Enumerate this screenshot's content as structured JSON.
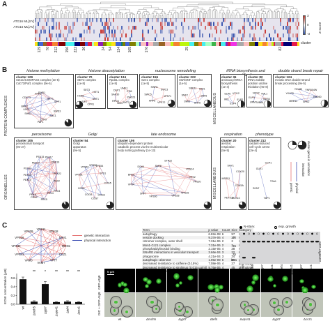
{
  "panels": {
    "a": "A",
    "b": "B",
    "c": "C"
  },
  "panel_a": {
    "row_labels": [
      "ATG16 ML[SY]",
      "ATG16 ML[AV]"
    ],
    "z_label": "Z-score",
    "z_ticks": [
      "3",
      "0",
      "-3"
    ],
    "cluster_label": "cluster",
    "cluster_ticks": [
      "129",
      "70",
      "212",
      "156",
      "222",
      "36",
      "24",
      "54",
      "134",
      "105",
      "176",
      "25",
      "82"
    ]
  },
  "panel_b": {
    "section_labels": {
      "protein_complexes": "PROTEIN COMPLEXES",
      "organelles": "ORGANELLES",
      "miscellaneous_top": "MISCELLANEOUS",
      "miscellaneous_bottom": "MISCELLANEOUS"
    },
    "top_row": [
      {
        "category": "histone methylation",
        "clusters": [
          {
            "title": "cluster 129",
            "sub": "Set1C/COMPASS complex (3e-5)\nCdc73/Paf1 complex (9e-5)",
            "genes": [
              "SWD3",
              "SDC1",
              "CTR9",
              "PAF1",
              "SHG1",
              "LEO1",
              "BRE2",
              "CDC73",
              "RTF1",
              "SWD1",
              "SET1",
              "SPP1"
            ]
          }
        ]
      },
      {
        "category": "histone deacetylation",
        "clusters": [
          {
            "title": "cluster 70",
            "sub": "SET3 complex\n(1e-8)",
            "genes": [
              "SNT1",
              "CPR1",
              "SIF2",
              "HOS2",
              "SET3",
              "HST1"
            ]
          },
          {
            "title": "cluster 134",
            "sub": "Rpd3L complex\n(1e-8)",
            "genes": [
              "PHO23",
              "RXT2",
              "SIN3",
              "RPD3",
              "SAP30",
              "DEP1",
              "UME1",
              "CTI6"
            ]
          }
        ]
      },
      {
        "category": "nucleosome remodeling",
        "clusters": [
          {
            "title": "cluster 156",
            "sub": "Swr1 complex\n(1e-5)",
            "genes": [
              "VPS71",
              "VPS72",
              "ARP6",
              "SWC5",
              "SWR1",
              "SWC3"
            ]
          },
          {
            "title": "cluster 222",
            "sub": "SWI/SNF complex\n(1e-5)",
            "genes": [
              "SNF6",
              "SNF5",
              "SWI3",
              "SNF2",
              "SNF11",
              "SWI1"
            ]
          }
        ]
      },
      {
        "category": "tRNA biosynthesis and modification",
        "clusters": [
          {
            "title": "cluster 36",
            "sub": "aminoacyl-tRNA\nbiosynthesis\n(1e-4)",
            "genes": [
              "ELP2",
              "ELP4",
              "IKI3",
              "ELP6",
              "KTI12"
            ]
          },
          {
            "title": "cluster 82",
            "sub": "tRNA wobble\nposition uridine\nthiolation (9e-8)",
            "genes": [
              "NCS6",
              "UBA4",
              "URM1",
              "ELP3",
              "NCS2",
              "YML1"
            ]
          }
        ]
      },
      {
        "category": "double strand break repair",
        "clusters": [
          {
            "title": "cluster 124",
            "sub": "meiotic DNA double-strand\nbreak processing (9e-5)",
            "genes": [
              "RAD50",
              "XRS2",
              "MRE11",
              "YKU70",
              "YKU80",
              "YNR004W"
            ]
          }
        ]
      }
    ],
    "bottom_row": [
      {
        "category": "peroxisome",
        "clusters": [
          {
            "title": "cluster 105",
            "sub": "peroxisomal transport\n(9e-27)",
            "genes": [
              "PEX2",
              "PEX3",
              "PEX4",
              "PEX5",
              "PEX6",
              "PEX8",
              "PEX10",
              "PEX12",
              "PEX13",
              "PEX14",
              "PEX15",
              "PEX17",
              "PEX19",
              "PEX22"
            ]
          }
        ]
      },
      {
        "category": "Golgi",
        "clusters": [
          {
            "title": "cluster 54",
            "sub": "Golgi\napparatus\n(9e-5)",
            "genes": [
              "COG5",
              "COG6",
              "COG7",
              "COG8",
              "GOS1",
              "VPS51",
              "VPS52",
              "VPS53",
              "VPS54",
              "SYS1"
            ]
          }
        ]
      },
      {
        "category": "late endosome",
        "clusters": [
          {
            "title": "cluster 106",
            "sub": "ubiquitin-dependent protein\ncatabolic process via the multivesicular\nbody sorting pathway (1e-13)",
            "genes": [
              "VPS20",
              "VPS25",
              "VPS28",
              "VPS36",
              "SNF7",
              "VPS4",
              "BRO1",
              "DOA4",
              "SNF8",
              "STP22",
              "VPS24",
              "VPS2"
            ]
          }
        ]
      },
      {
        "category": "respiration",
        "clusters": [
          {
            "title": "cluster 20",
            "sub": "aerobic\nrespiration\n(5e-5)",
            "genes": [
              "COX5A",
              "COX10",
              "PET100",
              "MSS51",
              "SHY1",
              "COX20"
            ]
          }
        ]
      },
      {
        "category": "phenotype",
        "clusters": [
          {
            "title": "cluster 212",
            "sub": "oxidant-induced\ncell-cycle arrest\n(3e-4)",
            "genes": [
              "TSA1",
              "YAP1",
              "SKN7",
              "GLR1",
              "CCP1"
            ]
          }
        ]
      }
    ],
    "legend": {
      "genetic": "genetic",
      "physical": "physical",
      "caption": "interaction",
      "coverage": "cluster genes in annotation"
    }
  },
  "panel_c": {
    "network_genes": [
      "MON1",
      "CCZ1",
      "YPT7",
      "VAM7",
      "VAM3",
      "VPS41",
      "VPS33",
      "VPS16",
      "VPS39",
      "VPS11",
      "VPS18",
      "NYV1"
    ],
    "network_legend": {
      "genetic": "genetic interaction",
      "physical": "physical interaction"
    },
    "table": {
      "headers": [
        "Term",
        "p value",
        "Count",
        "Size",
        "Category"
      ],
      "rows": [
        [
          "autophagy",
          "6.82e-08",
          "6",
          "97",
          "GO:BP"
        ],
        [
          "vesicle docking",
          "9.37e-06",
          "4",
          "27",
          "GO:BP"
        ],
        [
          "retromer complex, outer shell",
          "7.31e-06",
          "2",
          "2",
          "GO:CC"
        ],
        [
          "Mon1-Ccz1 complex",
          "7.31e-06",
          "2",
          "2",
          "GO:CC"
        ],
        [
          "phosphatidylinositol binding",
          "2.15e-05",
          "4",
          "38",
          "GO:MF"
        ],
        [
          "SNARE interactions in vesicular transport",
          "3.66e-04",
          "3",
          "22",
          "KEGG"
        ],
        [
          "phagosome",
          "4.21e-04",
          "3",
          "24",
          "KEGG"
        ],
        [
          "autophagic: aberrant",
          "1.95e-09",
          "6",
          "29",
          "phenotype"
        ],
        [
          "decreased resistance to caffeine (0.15%)",
          "7.08e-06",
          "4",
          "27",
          "phenotype"
        ],
        [
          "decreased resistance to sirolimus (0.015 µg/ml)",
          "9.76e-06",
          "4",
          "45",
          "phenotype"
        ],
        [
          "vacuolar morphology: abnormal",
          "2.28e-08",
          "6",
          "69",
          "phenotype"
        ]
      ]
    },
    "western": {
      "legend": {
        "starv": "N-starv.",
        "exp": "exp. growth"
      },
      "bands": [
        "GFP-Atg8",
        "GFP"
      ],
      "markers": [
        "kDa",
        "40",
        "35",
        "25"
      ],
      "lanes": [
        "wt",
        "Δmch5",
        "Δypt7",
        "Δvps41",
        "Δtef4",
        "Δvps41",
        "Δypt7",
        "Δccz1"
      ]
    },
    "barchart_labels": [
      "wt",
      "Δmch5",
      "Δypt7",
      "Δvps41",
      "Δtef4",
      "Δccz1"
    ],
    "microscopy": {
      "scale_bar": "5 µm",
      "row_labels": [
        "GFP-Atg8",
        "DIC + GFP-Atg8"
      ],
      "strains": [
        "wt",
        "Δmch5",
        "Δypt7",
        "Δtef4",
        "Δvps41",
        "Δypt7",
        "Δccz1"
      ]
    }
  },
  "chart_data": {
    "type": "bar",
    "categories": [
      "wt",
      "Δmch5",
      "Δypt7",
      "Δvps41",
      "Δtef4",
      "Δccz1"
    ],
    "series": [
      {
        "values": [
          0.57,
          0.06,
          0.46,
          0.05,
          0.06,
          0.05
        ],
        "errors": [
          0.05,
          0.02,
          0.06,
          0.01,
          0.02,
          0.01
        ]
      }
    ],
    "significance": [
      "",
      "**",
      "*",
      "**",
      "**",
      "**"
    ],
    "ylabel": "EC50 concentration (µM)",
    "yticks": [
      "0.0",
      "0.2",
      "0.4",
      "0.6"
    ],
    "ylim": [
      0,
      0.7
    ]
  }
}
